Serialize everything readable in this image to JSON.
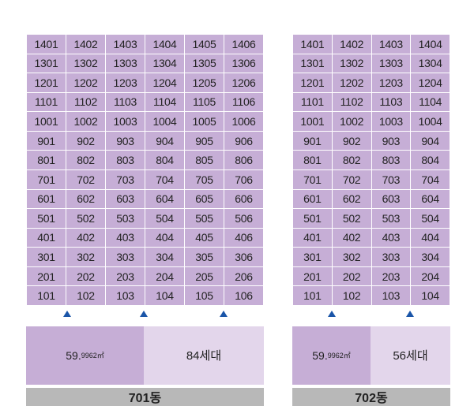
{
  "building_701": {
    "floors": [
      [
        "1401",
        "1402",
        "1403",
        "1404",
        "1405",
        "1406"
      ],
      [
        "1301",
        "1302",
        "1303",
        "1304",
        "1305",
        "1306"
      ],
      [
        "1201",
        "1202",
        "1203",
        "1204",
        "1205",
        "1206"
      ],
      [
        "1101",
        "1102",
        "1103",
        "1104",
        "1105",
        "1106"
      ],
      [
        "1001",
        "1002",
        "1003",
        "1004",
        "1005",
        "1006"
      ],
      [
        "901",
        "902",
        "903",
        "904",
        "905",
        "906"
      ],
      [
        "801",
        "802",
        "803",
        "804",
        "805",
        "806"
      ],
      [
        "701",
        "702",
        "703",
        "704",
        "705",
        "706"
      ],
      [
        "601",
        "602",
        "603",
        "604",
        "605",
        "606"
      ],
      [
        "501",
        "502",
        "503",
        "504",
        "505",
        "506"
      ],
      [
        "401",
        "402",
        "403",
        "404",
        "405",
        "406"
      ],
      [
        "301",
        "302",
        "303",
        "304",
        "305",
        "306"
      ],
      [
        "201",
        "202",
        "203",
        "204",
        "205",
        "206"
      ],
      [
        "101",
        "102",
        "103",
        "104",
        "105",
        "106"
      ]
    ],
    "area_main": "59.",
    "area_small": "9962㎡",
    "units": "84세대",
    "name": "701동"
  },
  "building_702": {
    "floors": [
      [
        "1401",
        "1402",
        "1403",
        "1404"
      ],
      [
        "1301",
        "1302",
        "1303",
        "1304"
      ],
      [
        "1201",
        "1202",
        "1203",
        "1204"
      ],
      [
        "1101",
        "1102",
        "1103",
        "1104"
      ],
      [
        "1001",
        "1002",
        "1003",
        "1004"
      ],
      [
        "901",
        "902",
        "903",
        "904"
      ],
      [
        "801",
        "802",
        "803",
        "804"
      ],
      [
        "701",
        "702",
        "703",
        "704"
      ],
      [
        "601",
        "602",
        "603",
        "604"
      ],
      [
        "501",
        "502",
        "503",
        "504"
      ],
      [
        "401",
        "402",
        "403",
        "404"
      ],
      [
        "301",
        "302",
        "303",
        "304"
      ],
      [
        "201",
        "202",
        "203",
        "204"
      ],
      [
        "101",
        "102",
        "103",
        "104"
      ]
    ],
    "area_main": "59.",
    "area_small": "9962㎡",
    "units": "56세대",
    "name": "702동"
  },
  "colors": {
    "unit_cell": "#c6aed6",
    "area_box": "#c6aed6",
    "units_box": "#e3d6eb",
    "name_bar": "#b8b8b8",
    "entrance_marker": "#1a55a8"
  },
  "icons": [
    "entrance-marker-icon"
  ]
}
